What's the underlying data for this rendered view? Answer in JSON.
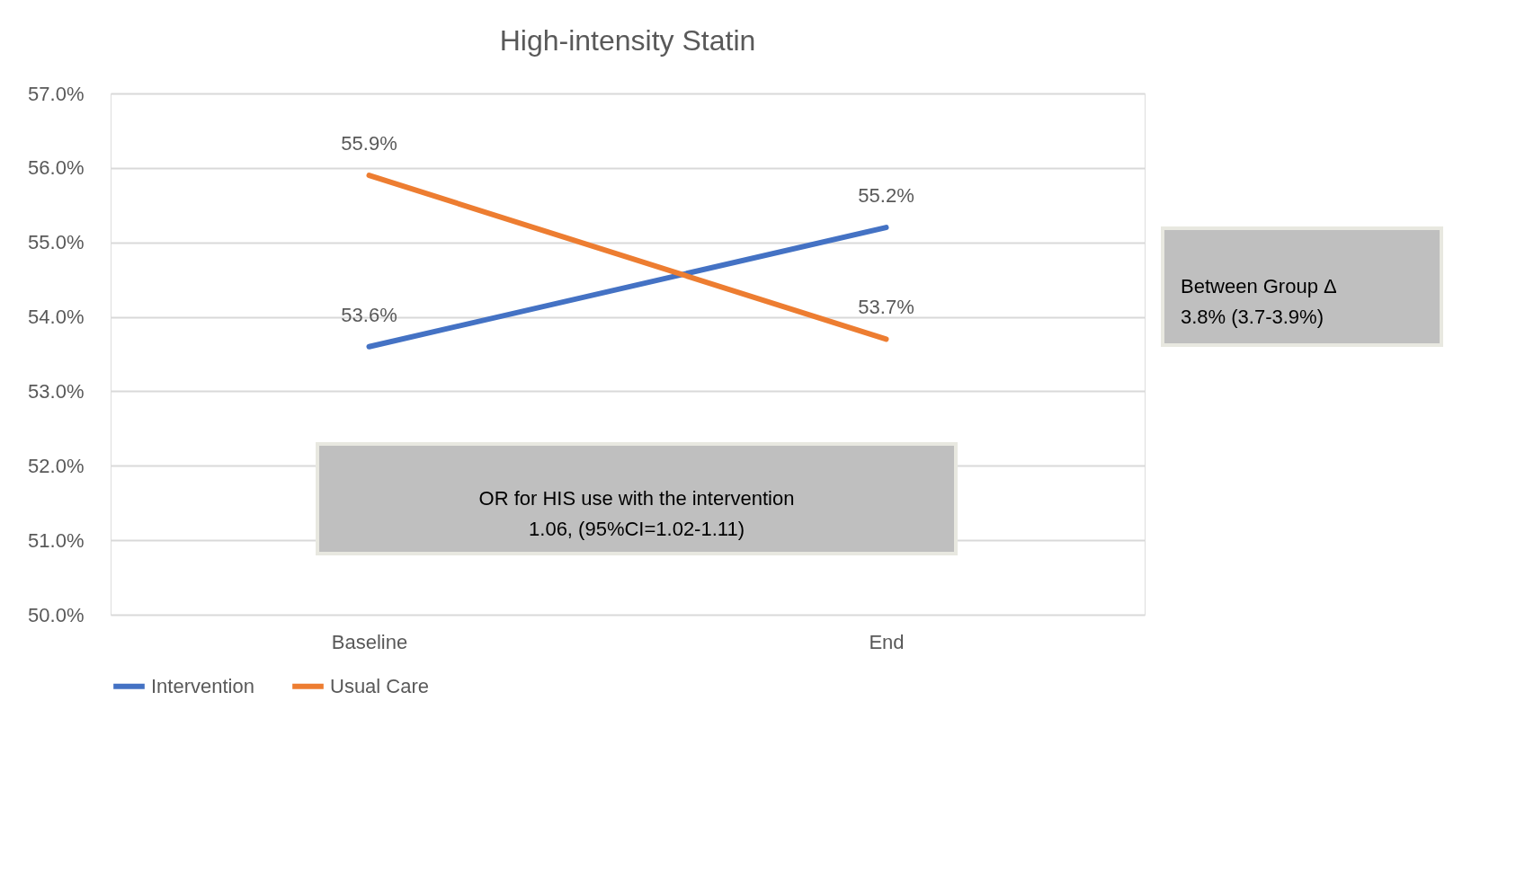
{
  "chart_data": {
    "type": "line",
    "title": "High-intensity Statin",
    "categories": [
      "Baseline",
      "End"
    ],
    "series": [
      {
        "name": "Intervention",
        "color": "#4472c4",
        "values": [
          53.6,
          55.2
        ],
        "value_labels": [
          "53.6%",
          "55.2%"
        ]
      },
      {
        "name": "Usual Care",
        "color": "#ed7d31",
        "values": [
          55.9,
          53.7
        ],
        "value_labels": [
          "55.9%",
          "53.7%"
        ]
      }
    ],
    "ylim": [
      50,
      57
    ],
    "yticks": [
      {
        "value": 50,
        "label": "50.0%"
      },
      {
        "value": 51,
        "label": "51.0%"
      },
      {
        "value": 52,
        "label": "52.0%"
      },
      {
        "value": 53,
        "label": "53.0%"
      },
      {
        "value": 54,
        "label": "54.0%"
      },
      {
        "value": 55,
        "label": "55.0%"
      },
      {
        "value": 56,
        "label": "56.0%"
      },
      {
        "value": 57,
        "label": "57.0%"
      }
    ],
    "annotations": [
      "Between Group Δ\n3.8% (3.7-3.9%)",
      "OR for HIS use with the intervention\n1.06, (95%CI=1.02-1.11)"
    ],
    "grid": "y",
    "legend": "bottom",
    "marker": "none",
    "line_style": "solid"
  }
}
